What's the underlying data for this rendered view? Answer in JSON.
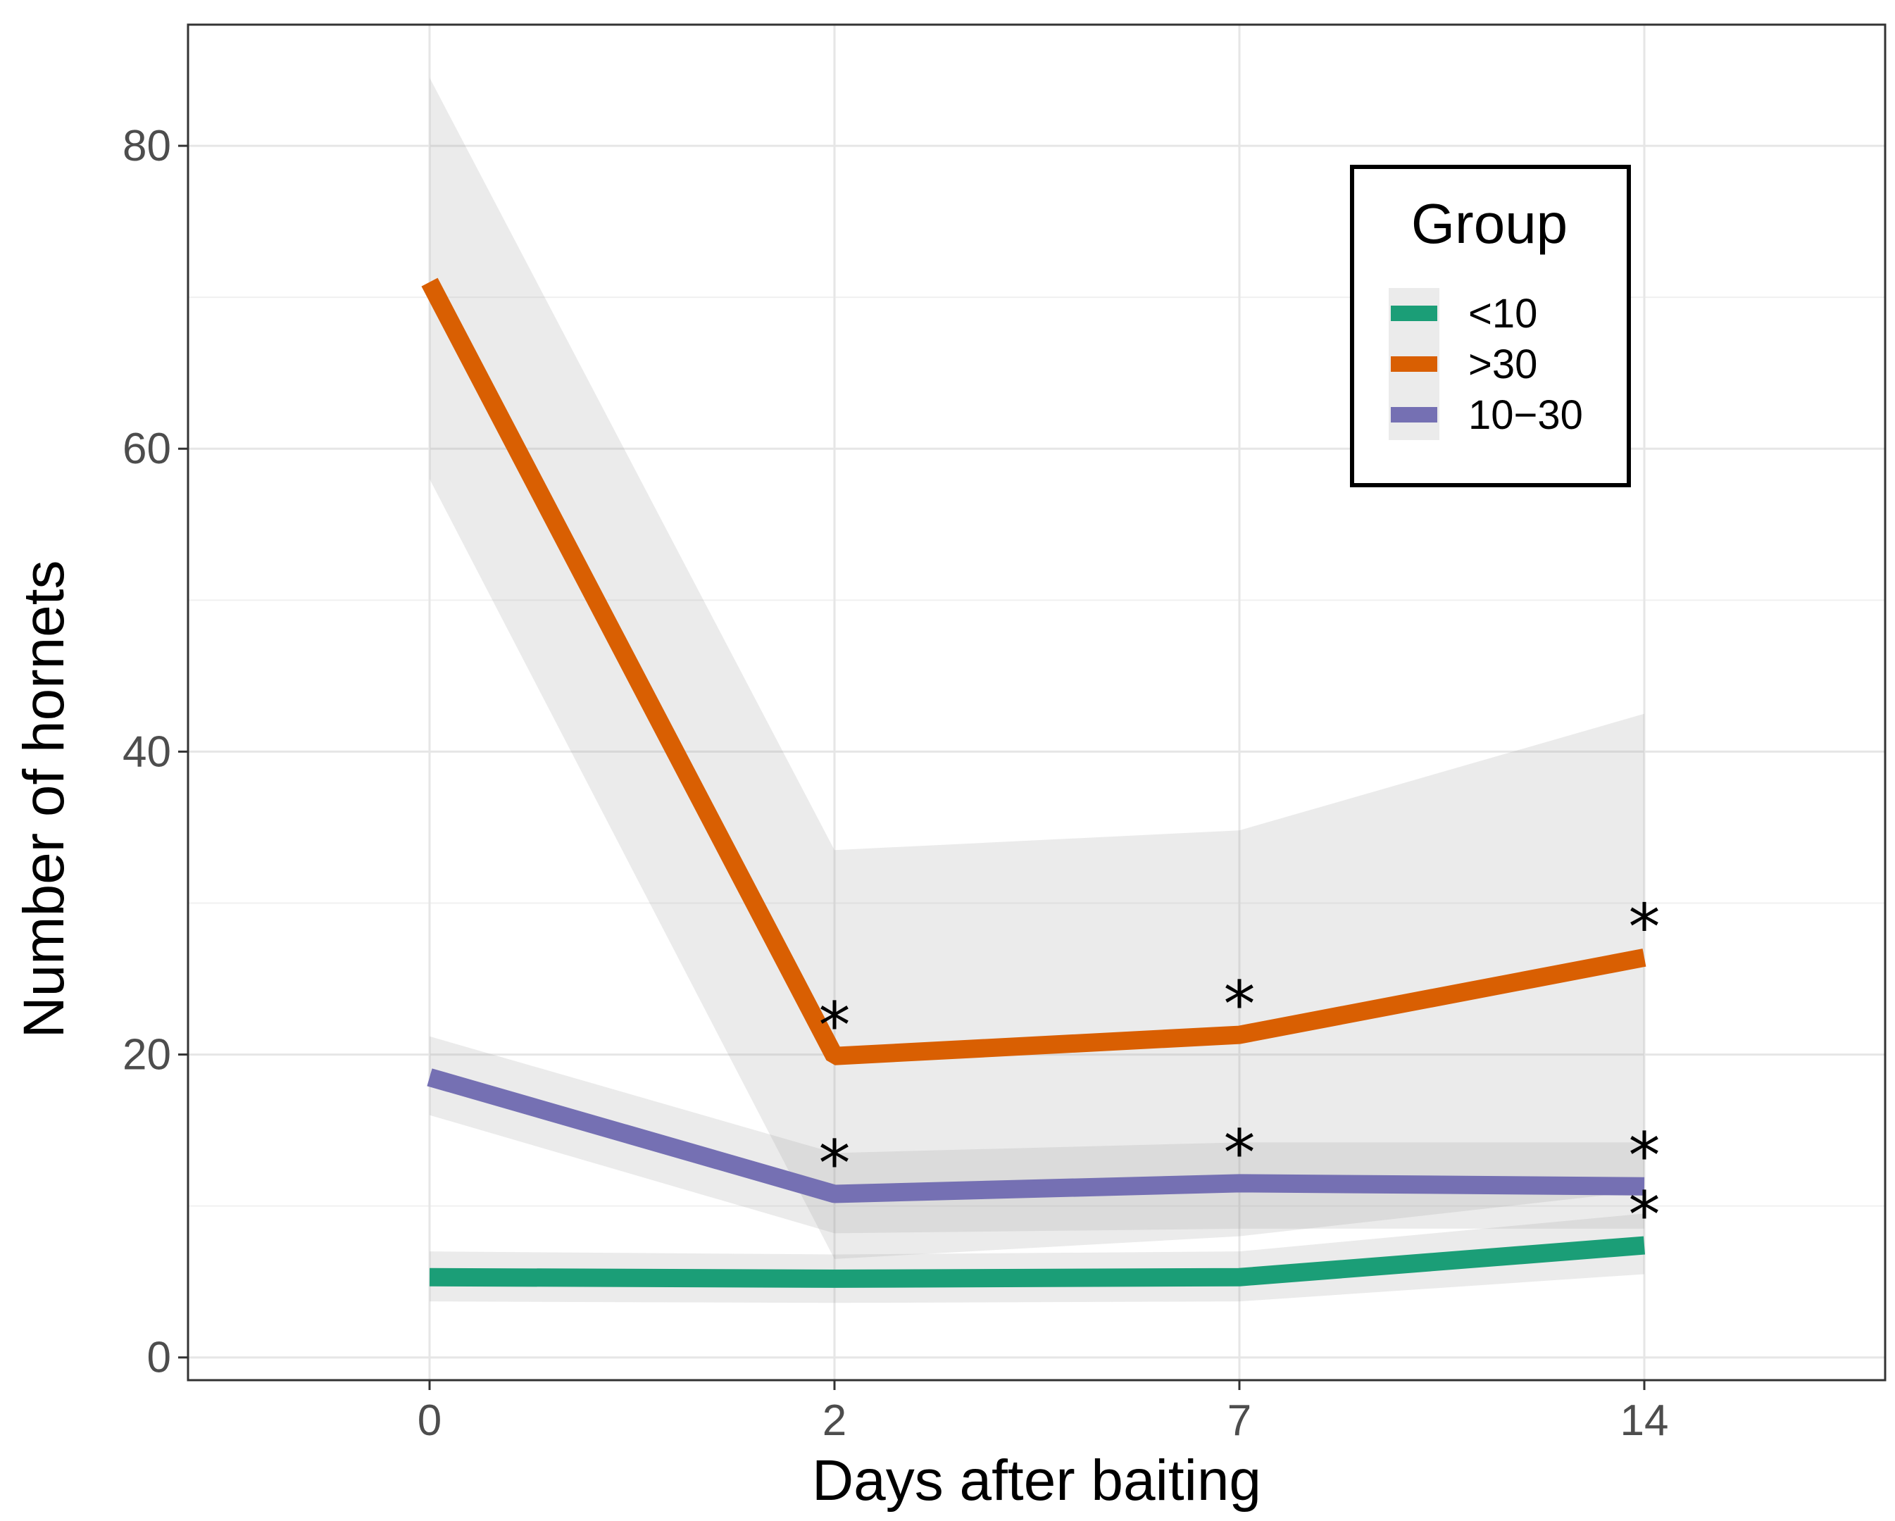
{
  "chart_data": {
    "type": "line",
    "xlabel": "Days after baiting",
    "ylabel": "Number of hornets",
    "categories": [
      "0",
      "2",
      "7",
      "14"
    ],
    "ylim": [
      -1.5,
      88
    ],
    "yticks": [
      0,
      20,
      40,
      60,
      80
    ],
    "grid": true,
    "legend": {
      "title": "Group",
      "position": "top-right"
    },
    "series": [
      {
        "name": "<10",
        "color": "#1b9e77",
        "values": [
          5.3,
          5.2,
          5.3,
          7.4
        ],
        "ci_lower": [
          3.7,
          3.6,
          3.7,
          5.5
        ],
        "ci_upper": [
          7.0,
          6.8,
          7.0,
          9.5
        ],
        "significant": [
          false,
          false,
          false,
          true
        ]
      },
      {
        "name": ">30",
        "color": "#d95f02",
        "values": [
          71.0,
          19.9,
          21.3,
          26.4
        ],
        "ci_lower": [
          58.0,
          6.5,
          8.0,
          11.0
        ],
        "ci_upper": [
          84.5,
          33.5,
          34.8,
          42.5
        ],
        "significant": [
          false,
          true,
          true,
          true
        ]
      },
      {
        "name": "10−30",
        "color": "#7570b3",
        "values": [
          18.5,
          10.8,
          11.5,
          11.3
        ],
        "ci_lower": [
          16.0,
          8.2,
          8.5,
          8.5
        ],
        "ci_upper": [
          21.2,
          13.5,
          14.2,
          14.2
        ],
        "significant": [
          false,
          true,
          true,
          true
        ]
      }
    ],
    "annotation_symbol": "*"
  }
}
